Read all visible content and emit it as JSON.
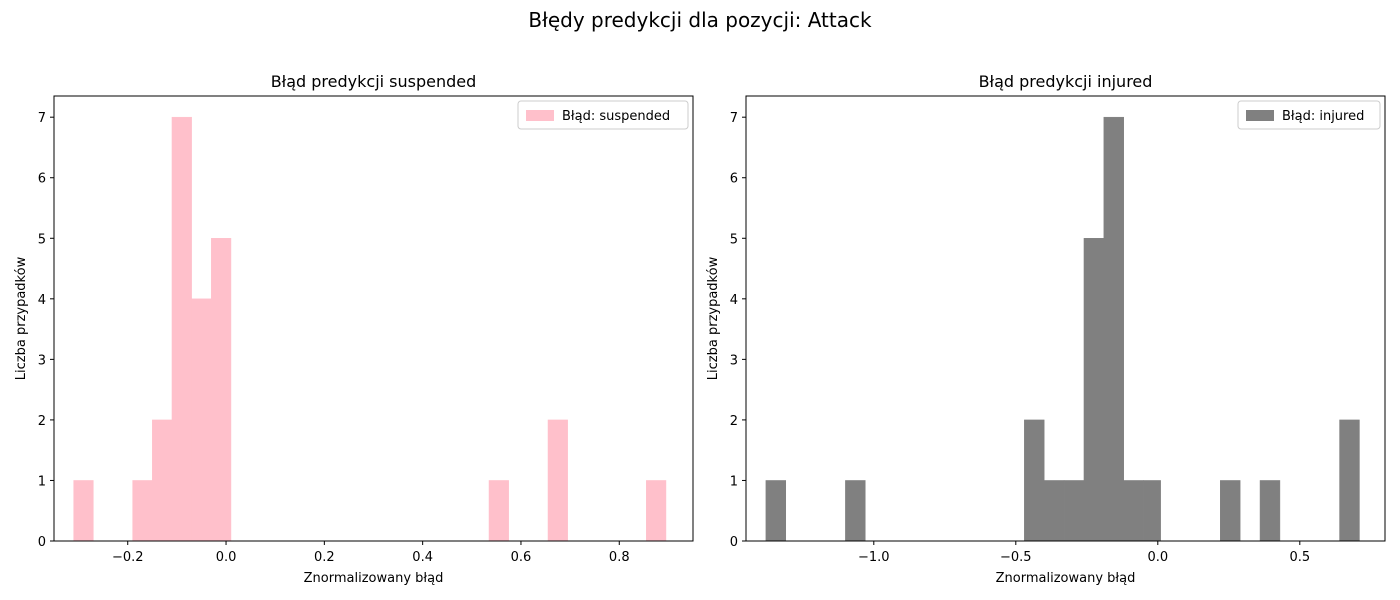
{
  "suptitle": "Błędy predykcji dla pozycji: Attack",
  "chart_data": [
    {
      "type": "bar",
      "histogram": true,
      "title": "Błąd predykcji suspended",
      "xlabel": "Znormalizowany błąd",
      "ylabel": "Liczba przypadków",
      "xlim": [
        -0.35,
        0.95
      ],
      "ylim": [
        0,
        7.35
      ],
      "xticks": [
        -0.2,
        0.0,
        0.2,
        0.4,
        0.6,
        0.8
      ],
      "xtick_labels": [
        "−0.2",
        "0.0",
        "0.2",
        "0.4",
        "0.6",
        "0.8"
      ],
      "yticks": [
        0,
        1,
        2,
        3,
        4,
        5,
        6,
        7
      ],
      "legend": "Błąd: suspended",
      "legend_position": "top-right",
      "color": "#FFC0CB",
      "bins": [
        {
          "x0": -0.31,
          "x1": -0.27,
          "count": 1
        },
        {
          "x0": -0.19,
          "x1": -0.15,
          "count": 1
        },
        {
          "x0": -0.15,
          "x1": -0.11,
          "count": 2
        },
        {
          "x0": -0.11,
          "x1": -0.07,
          "count": 7
        },
        {
          "x0": -0.07,
          "x1": -0.03,
          "count": 4
        },
        {
          "x0": -0.03,
          "x1": 0.01,
          "count": 5
        },
        {
          "x0": 0.535,
          "x1": 0.575,
          "count": 1
        },
        {
          "x0": 0.655,
          "x1": 0.695,
          "count": 2
        },
        {
          "x0": 0.855,
          "x1": 0.895,
          "count": 1
        }
      ]
    },
    {
      "type": "bar",
      "histogram": true,
      "title": "Błąd predykcji injured",
      "xlabel": "Znormalizowany błąd",
      "ylabel": "Liczba przypadków",
      "xlim": [
        -1.45,
        0.8
      ],
      "ylim": [
        0,
        7.35
      ],
      "xticks": [
        -1.0,
        -0.5,
        0.0,
        0.5
      ],
      "xtick_labels": [
        "−1.0",
        "−0.5",
        "0.0",
        "0.5"
      ],
      "yticks": [
        0,
        1,
        2,
        3,
        4,
        5,
        6,
        7
      ],
      "legend": "Błąd: injured",
      "legend_position": "top-right",
      "color": "#808080",
      "bins": [
        {
          "x0": -1.38,
          "x1": -1.31,
          "count": 1
        },
        {
          "x0": -1.1,
          "x1": -1.03,
          "count": 1
        },
        {
          "x0": -0.47,
          "x1": -0.4,
          "count": 2
        },
        {
          "x0": -0.4,
          "x1": -0.33,
          "count": 1
        },
        {
          "x0": -0.33,
          "x1": -0.26,
          "count": 1
        },
        {
          "x0": -0.26,
          "x1": -0.19,
          "count": 5
        },
        {
          "x0": -0.19,
          "x1": -0.12,
          "count": 7
        },
        {
          "x0": -0.12,
          "x1": -0.05,
          "count": 1
        },
        {
          "x0": -0.05,
          "x1": 0.01,
          "count": 1
        },
        {
          "x0": 0.22,
          "x1": 0.29,
          "count": 1
        },
        {
          "x0": 0.36,
          "x1": 0.43,
          "count": 1
        },
        {
          "x0": 0.64,
          "x1": 0.71,
          "count": 2
        }
      ]
    }
  ]
}
